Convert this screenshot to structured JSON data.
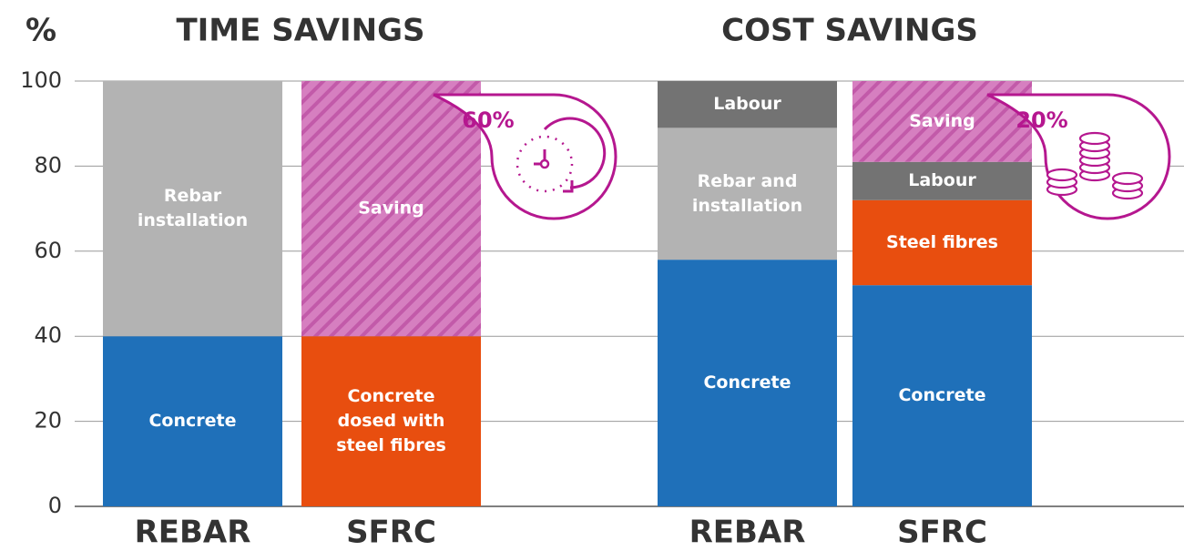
{
  "chart_data": {
    "type": "stacked_bar",
    "y_label": "%",
    "ylim": [
      0,
      100
    ],
    "yticks": [
      0,
      20,
      40,
      60,
      80,
      100
    ],
    "grid": true,
    "panels": [
      {
        "title": "TIME SAVINGS",
        "badge": "60%",
        "badge_icon": "clock",
        "categories": [
          "REBAR",
          "SFRC"
        ],
        "bars": [
          {
            "segments": [
              {
                "label": [
                  "Concrete"
                ],
                "value": 40,
                "color": "#1f70b9"
              },
              {
                "label": [
                  "Rebar",
                  "installation"
                ],
                "value": 60,
                "color": "#b3b3b3"
              }
            ]
          },
          {
            "segments": [
              {
                "label": [
                  "Concrete",
                  "dosed with",
                  "steel fibres"
                ],
                "value": 40,
                "color": "#e84e0f"
              },
              {
                "label": [
                  "Saving"
                ],
                "value": 60,
                "color": "#d67fc0",
                "hatch": true
              }
            ]
          }
        ]
      },
      {
        "title": "COST SAVINGS",
        "badge": "20%",
        "badge_icon": "coins",
        "categories": [
          "REBAR",
          "SFRC"
        ],
        "bars": [
          {
            "segments": [
              {
                "label": [
                  "Concrete"
                ],
                "value": 58,
                "color": "#1f70b9"
              },
              {
                "label": [
                  "Rebar and",
                  "installation"
                ],
                "value": 31,
                "color": "#b3b3b3"
              },
              {
                "label": [
                  "Labour"
                ],
                "value": 11,
                "color": "#737373"
              }
            ]
          },
          {
            "segments": [
              {
                "label": [
                  "Concrete"
                ],
                "value": 52,
                "color": "#1f70b9"
              },
              {
                "label": [
                  "Steel fibres"
                ],
                "value": 20,
                "color": "#e84e0f"
              },
              {
                "label": [
                  "Labour"
                ],
                "value": 9,
                "color": "#737373"
              },
              {
                "label": [
                  "Saving"
                ],
                "value": 19,
                "color": "#d67fc0",
                "hatch": true
              }
            ]
          }
        ]
      }
    ]
  }
}
